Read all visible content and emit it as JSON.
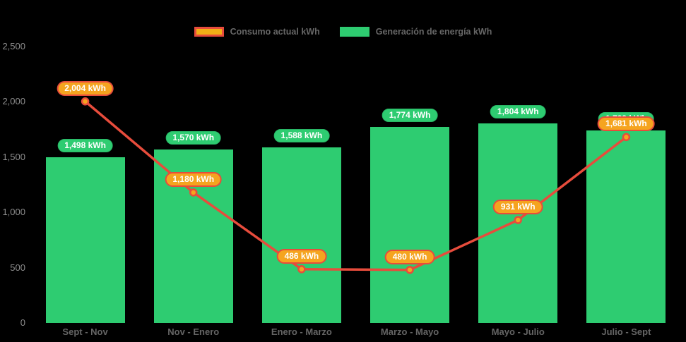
{
  "chart_data": {
    "type": "combo",
    "categories": [
      "Sept - Nov",
      "Nov - Enero",
      "Enero - Marzo",
      "Marzo - Mayo",
      "Mayo - Julio",
      "Julio - Sept"
    ],
    "series": [
      {
        "name": "Generación de energía kWh",
        "type": "bar",
        "color": "#2ecc71",
        "values": [
          1498,
          1570,
          1588,
          1774,
          1804,
          1739
        ],
        "labels": [
          "1,498 kWh",
          "1,570 kWh",
          "1,588 kWh",
          "1,774 kWh",
          "1,804 kWh",
          "1,739 kWh"
        ]
      },
      {
        "name": "Consumo actual kWh",
        "type": "line",
        "color": "#e74c3c",
        "marker_fill": "#f5a41f",
        "values": [
          2004,
          1180,
          486,
          480,
          931,
          1681
        ],
        "labels": [
          "2,004 kWh",
          "1,180 kWh",
          "486 kWh",
          "480 kWh",
          "931 kWh",
          "1,681 kWh"
        ]
      }
    ],
    "ylim": [
      0,
      2500
    ],
    "yticks": [
      0,
      500,
      1000,
      1500,
      2000,
      2500
    ],
    "ytick_labels": [
      "0",
      "500",
      "1,000",
      "1,500",
      "2,000",
      "2,500"
    ],
    "grid": false,
    "legend_position": "top-center",
    "background": "#000000",
    "colors": {
      "bar": "#2ecc71",
      "line": "#e74c3c",
      "marker_fill": "#f5a41f",
      "bar_pill_bg": "#2ecc71",
      "line_pill_bg": "#f5a41f",
      "line_pill_border": "#e74c3c",
      "axis_text": "#8d8d8d",
      "category_text": "#656565"
    }
  }
}
